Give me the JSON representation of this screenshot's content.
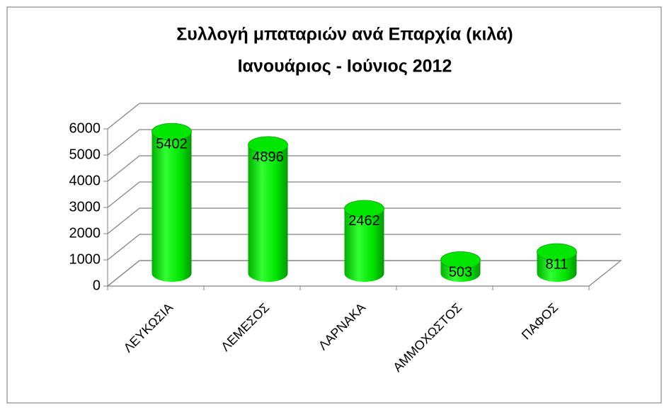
{
  "chart_data": {
    "type": "bar3d",
    "title": "Συλλογή μπαταριών ανά Επαρχία (κιλά)",
    "subtitle": "Ιανουάριος - Ιούνιος 2012",
    "categories": [
      "ΛΕΥΚΩΣΙΑ",
      "ΛΕΜΕΣΟΣ",
      "ΛΑΡΝΑΚΑ",
      "ΑΜΜΟΧΩΣΤΟΣ",
      "ΠΑΦΟΣ"
    ],
    "values": [
      5402,
      4896,
      2462,
      503,
      811
    ],
    "color": "#00e600",
    "ylim": [
      0,
      6000
    ],
    "yticks": [
      0,
      1000,
      2000,
      3000,
      4000,
      5000,
      6000
    ],
    "grid": true
  }
}
